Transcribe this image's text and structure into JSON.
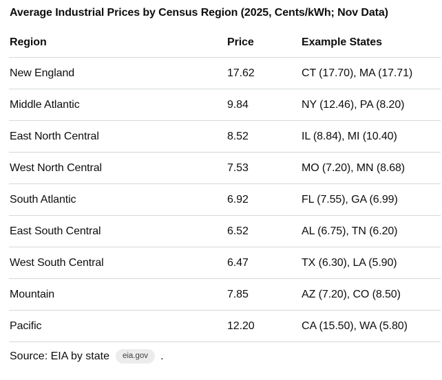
{
  "title": "Average Industrial Prices by Census Region (2025, Cents/kWh; Nov Data)",
  "table": {
    "columns": [
      "Region",
      "Price",
      "Example States"
    ],
    "rows": [
      {
        "region": "New England",
        "price": "17.62",
        "states": "CT (17.70), MA (17.71)"
      },
      {
        "region": "Middle Atlantic",
        "price": "9.84",
        "states": "NY (12.46), PA (8.20)"
      },
      {
        "region": "East North Central",
        "price": "8.52",
        "states": "IL (8.84), MI (10.40)"
      },
      {
        "region": "West North Central",
        "price": "7.53",
        "states": "MO (7.20), MN (8.68)"
      },
      {
        "region": "South Atlantic",
        "price": "6.92",
        "states": "FL (7.55), GA (6.99)"
      },
      {
        "region": "East South Central",
        "price": "6.52",
        "states": "AL (6.75), TN (6.20)"
      },
      {
        "region": "West South Central",
        "price": "6.47",
        "states": "TX (6.30), LA (5.90)"
      },
      {
        "region": "Mountain",
        "price": "7.85",
        "states": "AZ (7.20), CO (8.50)"
      },
      {
        "region": "Pacific",
        "price": "12.20",
        "states": "CA (15.50), WA (5.80)"
      }
    ]
  },
  "footer": {
    "source_text": "Source: EIA by state",
    "citation_label": "eia.gov",
    "suffix": "."
  },
  "colors": {
    "background": "#ffffff",
    "text": "#0d0d0d",
    "divider": "#d3d9dc",
    "chip_background": "#ececec",
    "chip_text": "#3f3f3f"
  },
  "chart_data": {
    "type": "table",
    "title": "Average Industrial Prices by Census Region (2025, Cents/kWh; Nov Data)",
    "columns": [
      "Region",
      "Price",
      "Example States"
    ],
    "rows": [
      [
        "New England",
        17.62,
        "CT (17.70), MA (17.71)"
      ],
      [
        "Middle Atlantic",
        9.84,
        "NY (12.46), PA (8.20)"
      ],
      [
        "East North Central",
        8.52,
        "IL (8.84), MI (10.40)"
      ],
      [
        "West North Central",
        7.53,
        "MO (7.20), MN (8.68)"
      ],
      [
        "South Atlantic",
        6.92,
        "FL (7.55), GA (6.99)"
      ],
      [
        "East South Central",
        6.52,
        "AL (6.75), TN (6.20)"
      ],
      [
        "West South Central",
        6.47,
        "TX (6.30), LA (5.90)"
      ],
      [
        "Mountain",
        7.85,
        "AZ (7.20), CO (8.50)"
      ],
      [
        "Pacific",
        12.2,
        "CA (15.50), WA (5.80)"
      ]
    ],
    "source": "Source: EIA by state eia.gov ."
  }
}
